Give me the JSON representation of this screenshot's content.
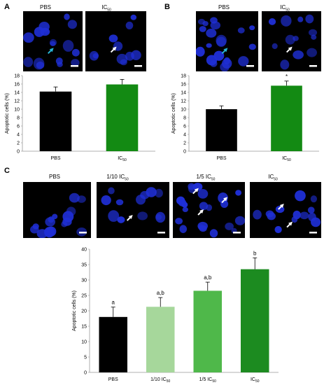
{
  "panels": [
    {
      "letter": "A",
      "images": [
        "PBS",
        "IC50"
      ]
    },
    {
      "letter": "B",
      "images": [
        "PBS",
        "IC50"
      ]
    },
    {
      "letter": "C",
      "images": [
        "PBS",
        "1/10 IC50",
        "1/5 IC50",
        "IC50"
      ]
    }
  ],
  "colors": {
    "black": "#000000",
    "green": "#138a13",
    "light_green": "#a6d79b",
    "mid_green": "#4fb84a",
    "dark_green": "#1c8b20",
    "cell_blue": "#1f2fd6",
    "arrow_cyan": "#29b5d6"
  },
  "chart_data": [
    {
      "type": "bar",
      "panel": "A",
      "categories": [
        "PBS",
        "IC50"
      ],
      "values": [
        14.2,
        15.9
      ],
      "errors": [
        1.1,
        1.2
      ],
      "ylabel": "Apoptotic cells (%)",
      "ylim": [
        0,
        18
      ],
      "yticks": [
        0,
        2,
        4,
        6,
        8,
        10,
        12,
        14,
        16,
        18
      ],
      "bar_colors": [
        "#000000",
        "#138a13"
      ],
      "annotations": [
        "",
        ""
      ]
    },
    {
      "type": "bar",
      "panel": "B",
      "categories": [
        "PBS",
        "IC50"
      ],
      "values": [
        10.0,
        15.6
      ],
      "errors": [
        0.8,
        1.1
      ],
      "ylabel": "Apoptotic cells (%)",
      "ylim": [
        0,
        18
      ],
      "yticks": [
        0,
        2,
        4,
        6,
        8,
        10,
        12,
        14,
        16,
        18
      ],
      "bar_colors": [
        "#000000",
        "#138a13"
      ],
      "annotations": [
        "",
        "*"
      ]
    },
    {
      "type": "bar",
      "panel": "C",
      "categories": [
        "PBS",
        "1/10 IC50",
        "1/5 IC50",
        "IC50"
      ],
      "values": [
        18.0,
        21.3,
        26.5,
        33.5
      ],
      "errors": [
        3.2,
        3.0,
        2.8,
        3.7
      ],
      "ylabel": "Apoptotic cells (%)",
      "ylim": [
        0,
        40
      ],
      "yticks": [
        0,
        5,
        10,
        15,
        20,
        25,
        30,
        35,
        40
      ],
      "bar_colors": [
        "#000000",
        "#a6d79b",
        "#4fb84a",
        "#1c8b20"
      ],
      "annotations": [
        "a",
        "a,b",
        "a,b",
        "b"
      ]
    }
  ]
}
